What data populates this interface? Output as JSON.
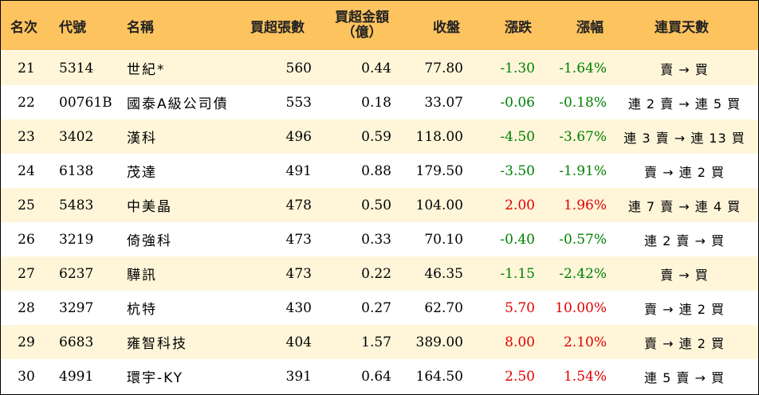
{
  "headers": {
    "rank": "名次",
    "code": "代號",
    "name": "名稱",
    "net_buy_lots": "買超張數",
    "net_buy_amount_line1": "買超金額",
    "net_buy_amount_line2": "（億）",
    "close": "收盤",
    "change": "漲跌",
    "change_pct": "漲幅",
    "streak": "連買天數"
  },
  "colors": {
    "header_bg": "#fdc35e",
    "odd_row_bg": "#fff6da",
    "up": "#e00000",
    "down": "#008000"
  },
  "rows": [
    {
      "rank": "21",
      "code": "5314",
      "name": "世紀*",
      "lots": "560",
      "amount": "0.44",
      "close": "77.80",
      "change": "-1.30",
      "pct": "-1.64%",
      "streak": "賣 → 買",
      "dir": "down"
    },
    {
      "rank": "22",
      "code": "00761B",
      "name": "國泰A級公司債",
      "lots": "553",
      "amount": "0.18",
      "close": "33.07",
      "change": "-0.06",
      "pct": "-0.18%",
      "streak": "連 2 賣 → 連 5 買",
      "dir": "down"
    },
    {
      "rank": "23",
      "code": "3402",
      "name": "漢科",
      "lots": "496",
      "amount": "0.59",
      "close": "118.00",
      "change": "-4.50",
      "pct": "-3.67%",
      "streak": "連 3 賣 → 連 13 買",
      "dir": "down"
    },
    {
      "rank": "24",
      "code": "6138",
      "name": "茂達",
      "lots": "491",
      "amount": "0.88",
      "close": "179.50",
      "change": "-3.50",
      "pct": "-1.91%",
      "streak": "賣 → 連 2 買",
      "dir": "down"
    },
    {
      "rank": "25",
      "code": "5483",
      "name": "中美晶",
      "lots": "478",
      "amount": "0.50",
      "close": "104.00",
      "change": "2.00",
      "pct": "1.96%",
      "streak": "連 7 賣 → 連 4 買",
      "dir": "up"
    },
    {
      "rank": "26",
      "code": "3219",
      "name": "倚強科",
      "lots": "473",
      "amount": "0.33",
      "close": "70.10",
      "change": "-0.40",
      "pct": "-0.57%",
      "streak": "連 2 賣 → 買",
      "dir": "down"
    },
    {
      "rank": "27",
      "code": "6237",
      "name": "驊訊",
      "lots": "473",
      "amount": "0.22",
      "close": "46.35",
      "change": "-1.15",
      "pct": "-2.42%",
      "streak": "賣 → 買",
      "dir": "down"
    },
    {
      "rank": "28",
      "code": "3297",
      "name": "杭特",
      "lots": "430",
      "amount": "0.27",
      "close": "62.70",
      "change": "5.70",
      "pct": "10.00%",
      "streak": "賣 → 連 2 買",
      "dir": "up"
    },
    {
      "rank": "29",
      "code": "6683",
      "name": "雍智科技",
      "lots": "404",
      "amount": "1.57",
      "close": "389.00",
      "change": "8.00",
      "pct": "2.10%",
      "streak": "賣 → 連 2 買",
      "dir": "up"
    },
    {
      "rank": "30",
      "code": "4991",
      "name": "環宇-KY",
      "lots": "391",
      "amount": "0.64",
      "close": "164.50",
      "change": "2.50",
      "pct": "1.54%",
      "streak": "連 5 賣 → 買",
      "dir": "up"
    }
  ]
}
